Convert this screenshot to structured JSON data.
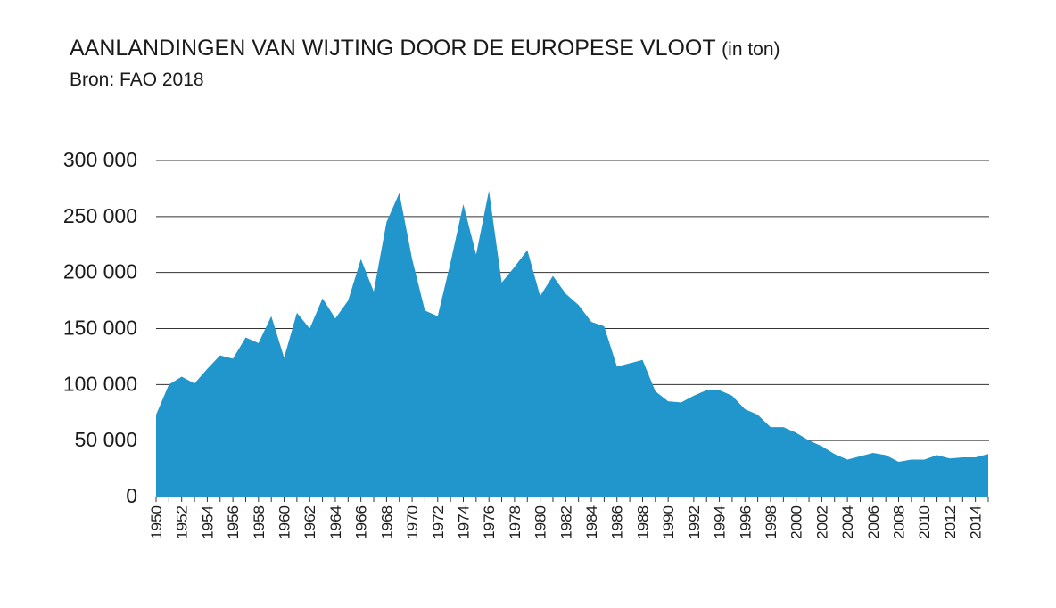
{
  "title": {
    "main": "AANLANDINGEN VAN WIJTING DOOR DE EUROPESE VLOOT",
    "unit": "(in ton)"
  },
  "subtitle": "Bron: FAO 2018",
  "colors": {
    "area": "#2196cc",
    "gridline": "#333333"
  },
  "chart_data": {
    "type": "area",
    "title": "AANLANDINGEN VAN WIJTING DOOR DE EUROPESE VLOOT (in ton)",
    "subtitle": "Bron: FAO 2018",
    "xlabel": "",
    "ylabel": "",
    "ylim": [
      0,
      300000
    ],
    "yticks": [
      "0",
      "50 000",
      "100 000",
      "150 000",
      "200 000",
      "250 000",
      "300 000"
    ],
    "xtick_labels": [
      "1950",
      "1952",
      "1954",
      "1956",
      "1958",
      "1960",
      "1962",
      "1964",
      "1966",
      "1968",
      "1970",
      "1972",
      "1974",
      "1976",
      "1978",
      "1980",
      "1982",
      "1984",
      "1986",
      "1988",
      "1990",
      "1992",
      "1994",
      "1996",
      "1998",
      "2000",
      "2002",
      "2004",
      "2006",
      "2008",
      "2010",
      "2012",
      "2014"
    ],
    "grid": true,
    "x": [
      1950,
      1951,
      1952,
      1953,
      1954,
      1955,
      1956,
      1957,
      1958,
      1959,
      1960,
      1961,
      1962,
      1963,
      1964,
      1965,
      1966,
      1967,
      1968,
      1969,
      1970,
      1971,
      1972,
      1973,
      1974,
      1975,
      1976,
      1977,
      1978,
      1979,
      1980,
      1981,
      1982,
      1983,
      1984,
      1985,
      1986,
      1987,
      1988,
      1989,
      1990,
      1991,
      1992,
      1993,
      1994,
      1995,
      1996,
      1997,
      1998,
      1999,
      2000,
      2001,
      2002,
      2003,
      2004,
      2005,
      2006,
      2007,
      2008,
      2009,
      2010,
      2011,
      2012,
      2013,
      2014,
      2015
    ],
    "values": [
      73000,
      100000,
      107000,
      101000,
      114000,
      126000,
      123000,
      142000,
      137000,
      161000,
      124000,
      164000,
      150000,
      177000,
      159000,
      175000,
      212000,
      183000,
      245000,
      271000,
      212000,
      166000,
      161000,
      209000,
      261000,
      216000,
      273000,
      191000,
      205000,
      220000,
      179000,
      197000,
      181000,
      171000,
      156000,
      152000,
      116000,
      119000,
      122000,
      94000,
      85000,
      84000,
      90000,
      95000,
      95000,
      90000,
      78000,
      73000,
      62000,
      62000,
      57000,
      50000,
      45000,
      38000,
      33000,
      36000,
      39000,
      37000,
      31000,
      33000,
      33000,
      37000,
      34000,
      35000,
      35000,
      38000
    ]
  }
}
